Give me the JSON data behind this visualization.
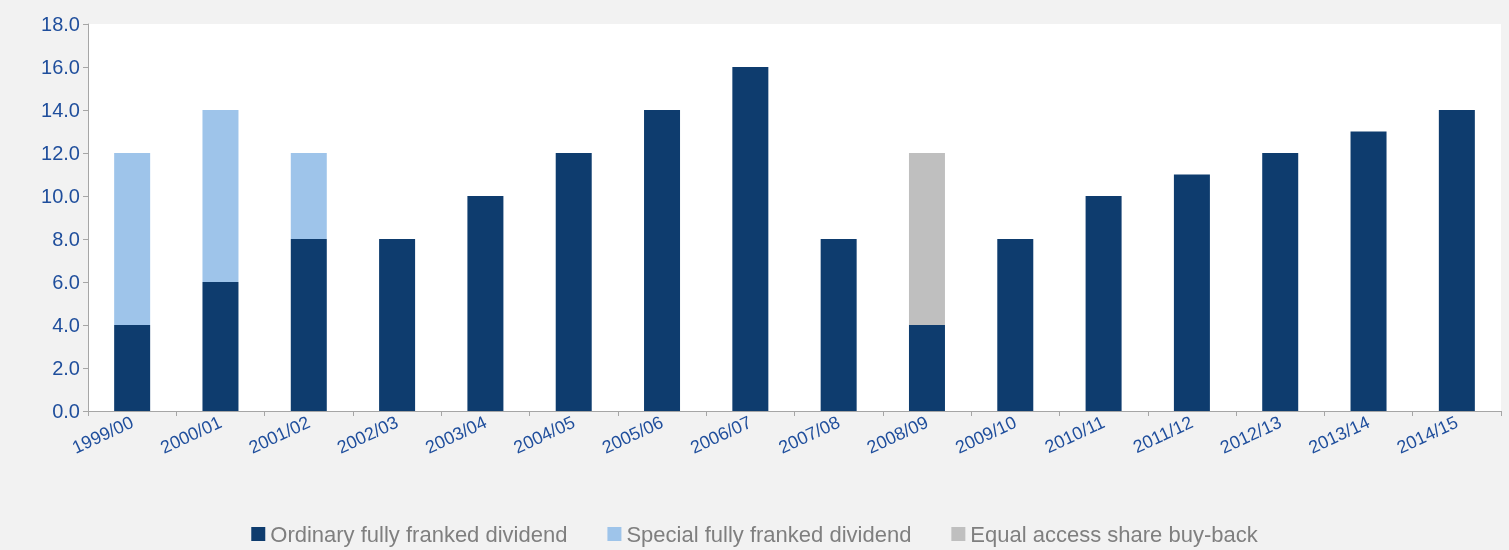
{
  "chart_data": {
    "type": "bar",
    "stacked": true,
    "categories": [
      "1999/00",
      "2000/01",
      "2001/02",
      "2002/03",
      "2003/04",
      "2004/05",
      "2005/06",
      "2006/07",
      "2007/08",
      "2008/09",
      "2009/10",
      "2010/11",
      "2011/12",
      "2012/13",
      "2013/14",
      "2014/15"
    ],
    "series": [
      {
        "name": "Ordinary fully franked dividend",
        "color": "#0e3c6e",
        "values": [
          4,
          6,
          8,
          8,
          10,
          12,
          14,
          16,
          8,
          4,
          8,
          10,
          11,
          12,
          13,
          14
        ]
      },
      {
        "name": "Special fully franked dividend",
        "color": "#9ec4ea",
        "values": [
          8,
          8,
          4,
          null,
          null,
          null,
          null,
          null,
          null,
          null,
          null,
          null,
          null,
          null,
          null,
          null
        ]
      },
      {
        "name": "Equal access share buy-back",
        "color": "#bfbfbf",
        "values": [
          null,
          null,
          null,
          null,
          null,
          null,
          null,
          null,
          null,
          8,
          null,
          null,
          null,
          null,
          null,
          null
        ]
      }
    ],
    "ylim": [
      0,
      18
    ],
    "yticks": [
      {
        "value": 0,
        "label": "0.0"
      },
      {
        "value": 2,
        "label": "2.0"
      },
      {
        "value": 4,
        "label": "4.0"
      },
      {
        "value": 6,
        "label": "6.0"
      },
      {
        "value": 8,
        "label": "8.0"
      },
      {
        "value": 10,
        "label": "10.0"
      },
      {
        "value": 12,
        "label": "12.0"
      },
      {
        "value": 14,
        "label": "14.0"
      },
      {
        "value": 16,
        "label": "16.0"
      },
      {
        "value": 18,
        "label": "18.0"
      }
    ],
    "grid": false,
    "legend": "bottom"
  }
}
